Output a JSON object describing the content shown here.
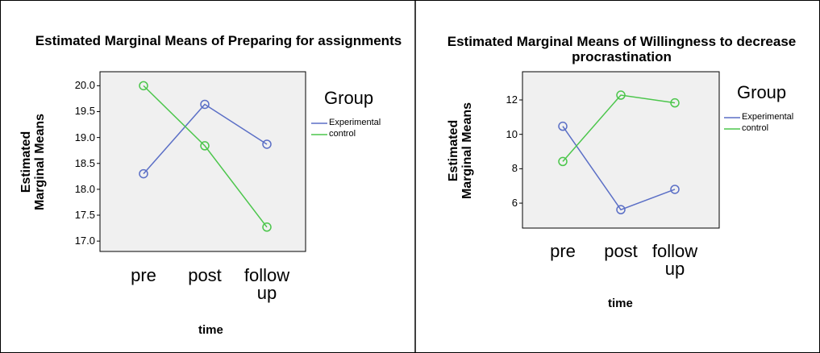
{
  "chart_data": [
    {
      "type": "line",
      "title": "Estimated Marginal Means of Preparing for assignments",
      "xlabel": "time",
      "ylabel": "Estimated Marginal Means",
      "legend_title": "Group",
      "categories": [
        "pre",
        "post",
        "follow up"
      ],
      "series": [
        {
          "name": "Experimental",
          "color": "#5b6fc6",
          "values": [
            18.3,
            19.64,
            18.87
          ]
        },
        {
          "name": "control",
          "color": "#4cc64c",
          "values": [
            20.0,
            18.84,
            17.27
          ]
        }
      ],
      "ylim": [
        16.8,
        20.27
      ],
      "yticks": [
        {
          "value": 17,
          "label": "17.0"
        },
        {
          "value": 17.5,
          "label": "17.5"
        },
        {
          "value": 18,
          "label": "18.0"
        },
        {
          "value": 18.5,
          "label": "18.5"
        },
        {
          "value": 19,
          "label": "19.0"
        },
        {
          "value": 19.5,
          "label": "19.5"
        },
        {
          "value": 20,
          "label": "20.0"
        }
      ]
    },
    {
      "type": "line",
      "title": "Estimated Marginal Means of Willingness to decrease procrastination",
      "xlabel": "time",
      "ylabel": "Estimated Marginal Means",
      "legend_title": "Group",
      "categories": [
        "pre",
        "post",
        "follow up"
      ],
      "series": [
        {
          "name": "Experimental",
          "color": "#5b6fc6",
          "values": [
            10.47,
            5.62,
            6.8
          ]
        },
        {
          "name": "control",
          "color": "#4cc64c",
          "values": [
            8.42,
            12.28,
            11.83
          ]
        }
      ],
      "ylim": [
        4.55,
        13.64
      ],
      "yticks": [
        6,
        8,
        10,
        12
      ]
    }
  ]
}
